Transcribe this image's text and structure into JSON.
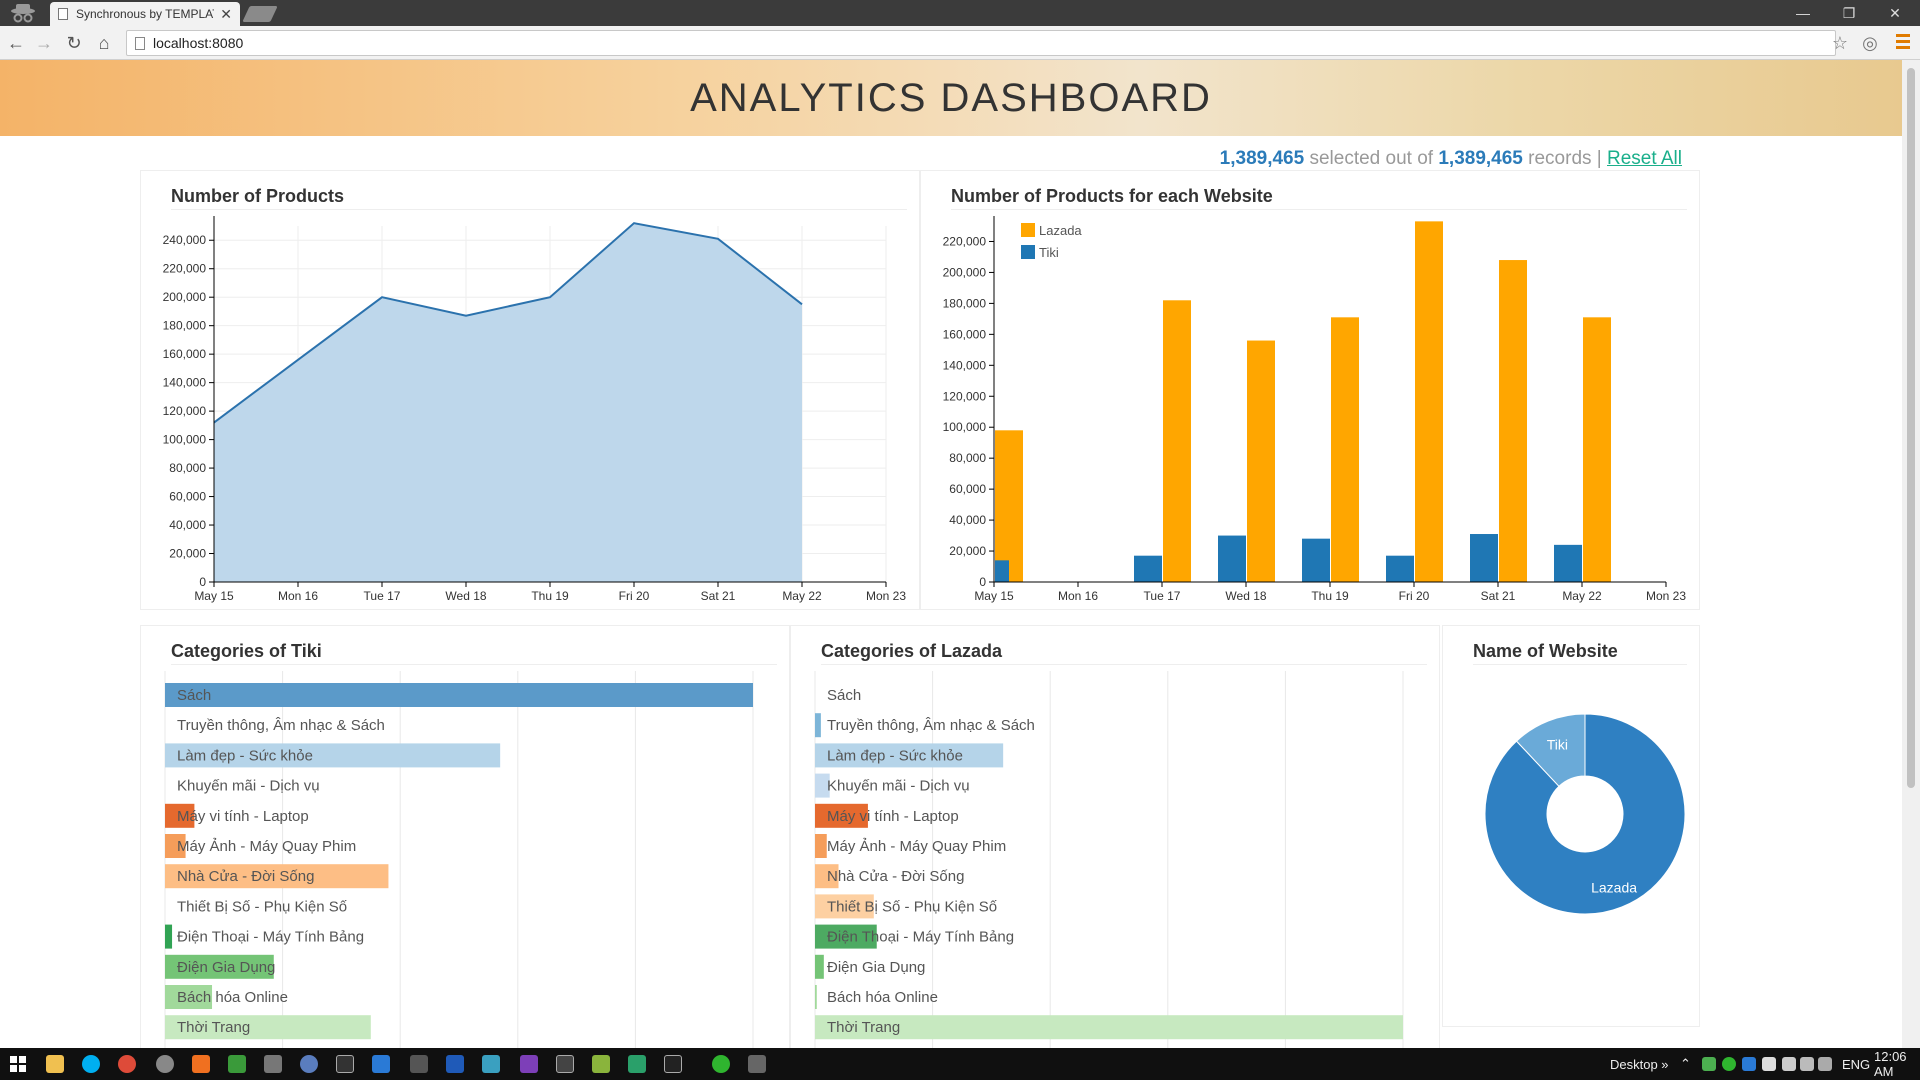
{
  "browser": {
    "tab_title": "Synchronous by TEMPLAT",
    "url": "localhost:8080"
  },
  "header": {
    "title": "ANALYTICS DASHBOARD"
  },
  "records": {
    "selected": "1,389,465",
    "middle_text": "selected out of",
    "total": "1,389,465",
    "suffix": "records",
    "separator": "|",
    "reset": "Reset All"
  },
  "panels": {
    "products": "Number of Products",
    "website_bars": "Number of Products for each Website",
    "tiki_categories": "Categories of Tiki",
    "lazada_categories": "Categories of Lazada",
    "website_pie": "Name of Website"
  },
  "chart_data": [
    {
      "type": "area",
      "title": "Number of Products",
      "x_ticks": [
        "May 15",
        "Mon 16",
        "Tue 17",
        "Wed 18",
        "Thu 19",
        "Fri 20",
        "Sat 21",
        "May 22",
        "Mon 23"
      ],
      "x": [
        "May 15",
        "Mon 16",
        "Tue 17",
        "Wed 18",
        "Thu 19",
        "Fri 20",
        "Sat 21",
        "May 22"
      ],
      "values": [
        112000,
        156000,
        200000,
        187000,
        200000,
        252000,
        241000,
        195000
      ],
      "ylim": [
        0,
        250000
      ],
      "y_ticks": [
        0,
        20000,
        40000,
        60000,
        80000,
        100000,
        120000,
        140000,
        160000,
        180000,
        200000,
        220000,
        240000
      ],
      "grid": true,
      "color": "#bad5ea",
      "line_color": "#2b72ad"
    },
    {
      "type": "bar",
      "title": "Number of Products for each Website",
      "x_ticks": [
        "May 15",
        "Mon 16",
        "Tue 17",
        "Wed 18",
        "Thu 19",
        "Fri 20",
        "Sat 21",
        "May 22",
        "Mon 23"
      ],
      "categories": [
        "May 15",
        "Mon 16",
        "Tue 17",
        "Wed 18",
        "Thu 19",
        "Fri 20",
        "Sat 21",
        "May 22"
      ],
      "series": [
        {
          "name": "Lazada",
          "color": "#ffa600",
          "values": [
            98000,
            0,
            182000,
            156000,
            171000,
            233000,
            208000,
            171000
          ]
        },
        {
          "name": "Tiki",
          "color": "#1f77b4",
          "values": [
            14000,
            0,
            17000,
            30000,
            28000,
            17000,
            31000,
            24000
          ]
        }
      ],
      "ylim": [
        0,
        230000
      ],
      "y_ticks": [
        0,
        20000,
        40000,
        60000,
        80000,
        100000,
        120000,
        140000,
        160000,
        180000,
        200000,
        220000
      ],
      "legend": "top-left"
    },
    {
      "type": "bar",
      "orientation": "horizontal",
      "title": "Categories of Tiki",
      "categories": [
        "Sách",
        "Truyền thông, Âm nhạc & Sách",
        "Làm đẹp - Sức khỏe",
        "Khuyến mãi - Dịch vụ",
        "Máy vi tính - Laptop",
        "Máy Ảnh - Máy Quay Phim",
        "Nhà Cửa - Đời Sống",
        "Thiết Bị Số - Phụ Kiện Số",
        "Điện Thoại - Máy Tính Bảng",
        "Điện Gia Dụng",
        "Bách hóa Online",
        "Thời Trang"
      ],
      "values": [
        100,
        0,
        57,
        0,
        5,
        3.5,
        38,
        0,
        1.2,
        18.5,
        8,
        35
      ],
      "colors": [
        "#5b9ac9",
        "#9ecae1",
        "#b5d4e9",
        "#c6dbef",
        "#e5692e",
        "#f59d5a",
        "#fdbe85",
        "#fdd0a2",
        "#31a354",
        "#74c476",
        "#a1d99b",
        "#c7e9c0"
      ]
    },
    {
      "type": "bar",
      "orientation": "horizontal",
      "title": "Categories of Lazada",
      "categories": [
        "Sách",
        "Truyền thông, Âm nhạc & Sách",
        "Làm đẹp - Sức khỏe",
        "Khuyến mãi - Dịch vụ",
        "Máy vi tính - Laptop",
        "Máy Ảnh - Máy Quay Phim",
        "Nhà Cửa - Đời Sống",
        "Thiết Bị Số - Phụ Kiện Số",
        "Điện Thoại - Máy Tính Bảng",
        "Điện Gia Dụng",
        "Bách hóa Online",
        "Thời Trang"
      ],
      "values": [
        0,
        1,
        32,
        2.5,
        9,
        2,
        4,
        10,
        10.5,
        1.5,
        0.3,
        100
      ],
      "colors": [
        "#5b9ac9",
        "#7db5d8",
        "#b5d4e9",
        "#c6dbef",
        "#e5692e",
        "#f59d5a",
        "#fdbe85",
        "#fdd0a2",
        "#4daa62",
        "#74c476",
        "#a1d99b",
        "#c7e9c0"
      ]
    },
    {
      "type": "pie",
      "title": "Name of Website",
      "donut": true,
      "labels": [
        "Lazada",
        "Tiki"
      ],
      "values": [
        88,
        12
      ],
      "colors": [
        "#2f80c2",
        "#6aaad8"
      ]
    }
  ]
}
